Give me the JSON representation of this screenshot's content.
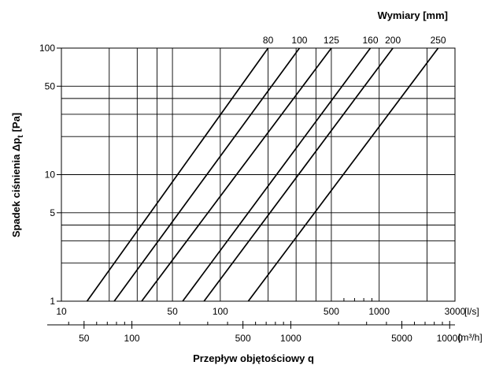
{
  "chart_data": {
    "type": "line",
    "scale": "log-log",
    "title": "Wymiary [mm]",
    "ylabel": "Spadek ciśnienia Δp",
    "ylabel_subscript": "t",
    "ylabel_unit": "[Pa]",
    "xlabel": "Przepływ objętościowy q",
    "x_unit": "[l/s]",
    "x2_unit": "[m³/h]",
    "xlim": [
      10,
      3000
    ],
    "ylim": [
      1,
      100
    ],
    "x_tick_labels": [
      "10",
      "50",
      "100",
      "500",
      "1000",
      "3000"
    ],
    "x_ticks": [
      10,
      50,
      100,
      500,
      1000,
      3000
    ],
    "x_grid": [
      20,
      30,
      40,
      50,
      100,
      200,
      300,
      400,
      500,
      1000,
      2000
    ],
    "y_tick_labels": [
      "1",
      "5",
      "10",
      "50",
      "100"
    ],
    "y_ticks": [
      1,
      5,
      10,
      50,
      100
    ],
    "y_grid": [
      2,
      3,
      4,
      5,
      10,
      20,
      30,
      40,
      50
    ],
    "x2_tick_labels": [
      "50",
      "100",
      "500",
      "1000",
      "5000",
      "10000"
    ],
    "x2_ticks": [
      50,
      100,
      500,
      1000,
      5000,
      10000
    ],
    "x2_minor": [
      40,
      60,
      70,
      80,
      90,
      200,
      300,
      400,
      600,
      700,
      800,
      900,
      2000,
      3000,
      4000,
      6000,
      7000,
      8000,
      9000
    ],
    "grid": true,
    "series": [
      {
        "name": "80",
        "points": [
          [
            14.5,
            1
          ],
          [
            200,
            100
          ]
        ]
      },
      {
        "name": "100",
        "points": [
          [
            21.5,
            1
          ],
          [
            315,
            100
          ]
        ]
      },
      {
        "name": "125",
        "points": [
          [
            32,
            1
          ],
          [
            500,
            100
          ]
        ]
      },
      {
        "name": "160",
        "points": [
          [
            58,
            1
          ],
          [
            880,
            100
          ]
        ]
      },
      {
        "name": "200",
        "points": [
          [
            79,
            1
          ],
          [
            1220,
            100
          ]
        ]
      },
      {
        "name": "250",
        "points": [
          [
            150,
            1
          ],
          [
            2350,
            100
          ]
        ]
      }
    ]
  }
}
